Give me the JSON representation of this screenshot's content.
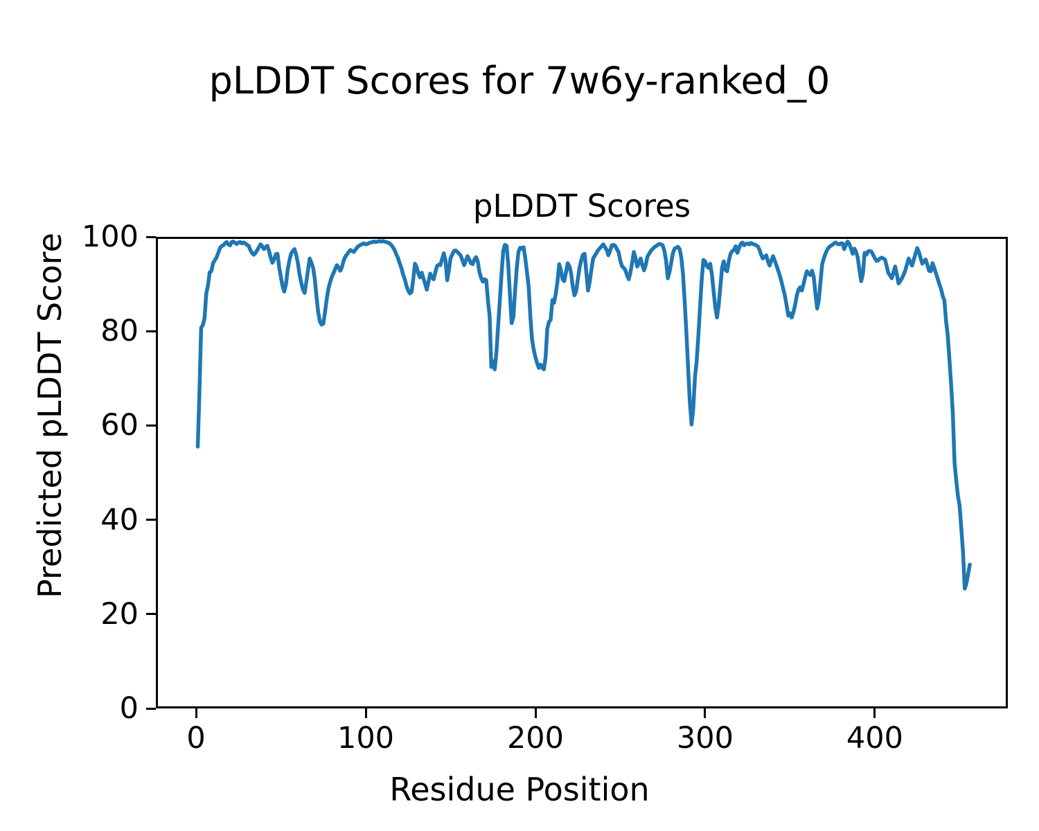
{
  "figure": {
    "suptitle": "pLDDT Scores for 7w6y-ranked_0",
    "axes_title": "pLDDT Scores",
    "xlabel": "Residue Position",
    "ylabel": "Predicted pLDDT Score"
  },
  "chart_data": {
    "type": "line",
    "title": "pLDDT Scores",
    "suptitle": "pLDDT Scores for 7w6y-ranked_0",
    "xlabel": "Residue Position",
    "ylabel": "Predicted pLDDT Score",
    "xlim": [
      -23.7,
      478.4
    ],
    "ylim": [
      0,
      100
    ],
    "xticks": [
      0,
      100,
      200,
      300,
      400
    ],
    "yticks": [
      0,
      20,
      40,
      60,
      80,
      100
    ],
    "grid": false,
    "legend": null,
    "line_color": "#1f77b4",
    "line_width": 5.5,
    "series": [
      {
        "name": "pLDDT",
        "x": {
          "start": 1,
          "step": 1
        },
        "y": [
          55.5,
          67.5,
          80.7,
          81.3,
          82.7,
          88.0,
          89.6,
          92.5,
          92.7,
          94.4,
          95.0,
          95.6,
          96.5,
          97.6,
          98.0,
          98.2,
          98.6,
          98.9,
          98.4,
          98.2,
          98.9,
          99.0,
          98.7,
          98.5,
          98.8,
          98.9,
          98.6,
          98.8,
          98.6,
          98.3,
          98.1,
          97.2,
          96.6,
          96.2,
          96.6,
          97.1,
          97.8,
          98.4,
          98.0,
          97.4,
          97.8,
          98.1,
          97.0,
          95.6,
          94.5,
          95.2,
          96.3,
          96.4,
          93.5,
          91.5,
          89.5,
          88.4,
          90.0,
          93.0,
          95.0,
          96.4,
          97.0,
          97.4,
          96.2,
          94.5,
          92.0,
          90.3,
          88.8,
          88.1,
          90.5,
          93.0,
          95.4,
          94.5,
          93.4,
          91.0,
          87.2,
          84.0,
          82.0,
          81.4,
          81.6,
          84.0,
          86.8,
          89.0,
          90.4,
          91.5,
          92.3,
          93.2,
          94.0,
          93.5,
          92.8,
          93.6,
          95.0,
          95.8,
          96.3,
          96.8,
          97.2,
          97.0,
          96.8,
          97.3,
          97.8,
          98.1,
          98.3,
          98.5,
          98.6,
          98.4,
          98.5,
          98.7,
          98.8,
          98.9,
          99.0,
          98.9,
          99.0,
          99.1,
          99.0,
          99.1,
          99.0,
          98.9,
          98.8,
          98.6,
          98.3,
          97.8,
          97.2,
          96.3,
          95.5,
          94.4,
          93.4,
          92.0,
          91.0,
          89.6,
          88.6,
          88.0,
          88.3,
          91.0,
          94.3,
          93.6,
          92.2,
          91.4,
          92.4,
          91.2,
          90.0,
          88.8,
          90.5,
          92.2,
          91.4,
          91.0,
          92.5,
          93.8,
          94.1,
          94.0,
          95.3,
          96.5,
          95.0,
          90.8,
          93.0,
          95.5,
          96.3,
          97.0,
          97.1,
          96.8,
          96.4,
          96.0,
          95.0,
          94.0,
          95.0,
          95.9,
          95.2,
          94.4,
          94.2,
          95.2,
          95.7,
          94.8,
          92.5,
          91.3,
          90.5,
          91.0,
          90.8,
          86.6,
          83.2,
          72.4,
          73.6,
          71.9,
          75.5,
          81.0,
          86.5,
          92.0,
          97.0,
          98.3,
          98.1,
          94.0,
          87.5,
          81.7,
          83.0,
          88.5,
          93.5,
          96.8,
          97.7,
          97.5,
          97.8,
          95.5,
          92.5,
          89.5,
          83.0,
          78.3,
          76.0,
          74.5,
          73.2,
          72.2,
          72.9,
          72.3,
          71.9,
          74.5,
          80.5,
          82.0,
          82.4,
          86.6,
          86.0,
          88.0,
          90.5,
          94.2,
          93.0,
          91.0,
          90.6,
          92.5,
          94.4,
          93.8,
          92.4,
          89.5,
          87.6,
          88.5,
          91.0,
          93.5,
          95.0,
          96.2,
          96.4,
          92.5,
          88.6,
          90.5,
          93.0,
          95.4,
          96.0,
          96.6,
          97.2,
          97.6,
          98.0,
          98.4,
          97.8,
          97.2,
          96.1,
          97.0,
          98.2,
          98.3,
          98.1,
          97.4,
          96.8,
          95.0,
          93.8,
          93.4,
          93.0,
          91.8,
          91.0,
          92.5,
          94.5,
          96.8,
          95.5,
          93.7,
          94.5,
          95.4,
          94.0,
          92.9,
          94.0,
          95.8,
          96.4,
          97.0,
          97.4,
          97.8,
          98.0,
          98.3,
          98.5,
          98.4,
          98.2,
          97.0,
          95.0,
          91.2,
          92.5,
          94.5,
          96.5,
          97.5,
          97.7,
          97.9,
          97.4,
          95.5,
          92.0,
          86.0,
          79.5,
          72.0,
          65.0,
          60.2,
          63.5,
          70.2,
          73.5,
          79.0,
          85.0,
          91.0,
          95.1,
          94.8,
          93.8,
          93.4,
          94.3,
          92.0,
          88.5,
          85.0,
          82.9,
          85.5,
          89.5,
          93.5,
          94.8,
          93.0,
          92.7,
          95.0,
          96.4,
          97.0,
          97.2,
          98.0,
          96.6,
          97.6,
          98.5,
          98.8,
          98.2,
          98.5,
          98.6,
          98.4,
          98.7,
          98.5,
          98.4,
          98.2,
          98.0,
          97.3,
          96.2,
          95.4,
          95.8,
          96.1,
          94.8,
          93.9,
          95.0,
          95.9,
          95.0,
          94.0,
          92.9,
          91.8,
          90.5,
          89.0,
          87.5,
          85.5,
          83.3,
          83.8,
          82.9,
          84.0,
          85.5,
          87.5,
          88.8,
          89.3,
          88.6,
          90.0,
          91.5,
          92.7,
          92.2,
          91.9,
          92.8,
          91.5,
          88.0,
          84.8,
          86.5,
          90.5,
          94.2,
          95.5,
          96.5,
          97.3,
          97.8,
          98.1,
          98.3,
          98.6,
          98.8,
          98.5,
          98.4,
          98.6,
          98.6,
          97.4,
          98.3,
          99.0,
          98.5,
          97.5,
          96.4,
          97.5,
          96.8,
          95.5,
          92.8,
          90.6,
          92.2,
          96.6,
          96.2,
          96.9,
          97.0,
          96.9,
          96.2,
          95.5,
          94.9,
          95.0,
          95.4,
          95.6,
          95.4,
          95.2,
          93.8,
          92.3,
          91.8,
          91.2,
          92.5,
          93.7,
          92.0,
          90.1,
          90.6,
          91.2,
          92.0,
          92.9,
          94.2,
          95.4,
          94.6,
          93.9,
          95.2,
          96.4,
          97.6,
          96.8,
          95.5,
          94.3,
          94.8,
          95.2,
          94.0,
          92.8,
          92.7,
          94.4,
          93.5,
          92.3,
          91.2,
          90.0,
          89.0,
          87.5,
          86.5,
          82.2,
          79.0,
          74.0,
          68.5,
          62.5,
          52.0,
          48.4,
          45.0,
          43.0,
          38.0,
          33.2,
          25.4,
          26.5,
          28.5,
          30.5
        ]
      }
    ]
  }
}
